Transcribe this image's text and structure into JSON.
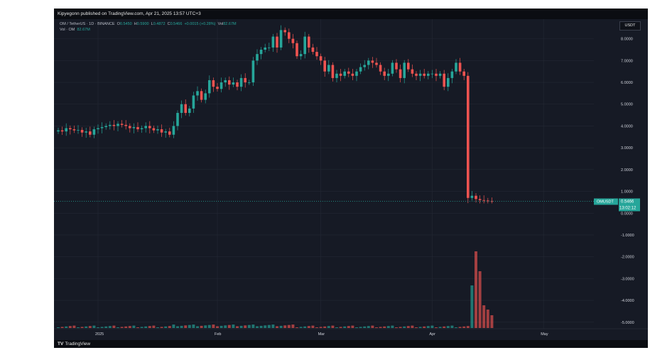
{
  "header": {
    "published": "Kipyegonn published on TradingView.com, Apr 21, 2025 13:57 UTC+3"
  },
  "legend": {
    "symbol": "OM / TetherUS · 1D · BINANCE",
    "o_label": "O",
    "o_value": "0.5450",
    "h_label": "H",
    "h_value": "0.5900",
    "l_label": "L",
    "l_value": "0.4872",
    "c_label": "C",
    "c_value": "0.5466",
    "change": "+0.0015 (+0.28%)",
    "vol_label": "Vol",
    "vol_value": "82.67M",
    "vol_line_label": "Vol · OM",
    "vol_line_value": "82.67M"
  },
  "currency_button": "USDT",
  "price_tag": {
    "symbol": "OMUSDT",
    "price": "0.5466",
    "countdown": "13:02:12"
  },
  "footer": {
    "brand": "TradingView",
    "logo": "TV"
  },
  "colors": {
    "background": "#161a25",
    "up": "#26a69a",
    "down": "#ef5350",
    "grid": "#232834"
  },
  "chart_data": {
    "type": "candlestick",
    "symbol": "OMUSDT",
    "exchange": "BINANCE",
    "interval": "1D",
    "ylim": [
      -5.3,
      8.9
    ],
    "y_ticks": [
      "8.0000",
      "7.0000",
      "6.0000",
      "5.0000",
      "4.0000",
      "3.0000",
      "2.0000",
      "1.0000",
      "0.0000",
      "-1.0000",
      "-2.0000",
      "-3.0000",
      "-4.0000",
      "-5.0000"
    ],
    "x_ticks": [
      "2025",
      "Feb",
      "Mar",
      "Apr",
      "May"
    ],
    "last_price": 0.5466,
    "closes": [
      3.8,
      3.75,
      3.9,
      3.85,
      3.8,
      3.82,
      3.7,
      3.75,
      3.6,
      3.85,
      3.9,
      3.95,
      4.0,
      4.05,
      4.0,
      4.1,
      4.05,
      4.0,
      3.9,
      3.95,
      3.85,
      3.9,
      4.0,
      3.9,
      3.8,
      3.85,
      3.7,
      3.75,
      3.6,
      4.0,
      4.6,
      5.0,
      4.6,
      4.8,
      5.4,
      5.6,
      5.2,
      5.5,
      6.1,
      5.8,
      5.7,
      6.0,
      6.1,
      5.9,
      6.0,
      5.8,
      6.2,
      6.0,
      6.0,
      7.0,
      7.3,
      7.5,
      7.6,
      7.6,
      8.1,
      7.6,
      8.4,
      8.3,
      8.0,
      7.8,
      7.2,
      7.3,
      8.1,
      7.6,
      7.4,
      7.2,
      7.0,
      6.5,
      6.8,
      6.2,
      6.4,
      6.3,
      6.5,
      6.4,
      6.3,
      6.5,
      6.7,
      6.8,
      7.0,
      6.9,
      6.8,
      6.5,
      6.3,
      6.4,
      6.9,
      6.6,
      6.2,
      6.9,
      6.6,
      6.4,
      6.3,
      6.4,
      6.3,
      6.4,
      6.4,
      6.3,
      6.4,
      5.8,
      6.2,
      6.5,
      6.9,
      6.5,
      6.3,
      0.7,
      0.8,
      0.65,
      0.6,
      0.58,
      0.55,
      0.5466
    ],
    "volume_labels_min": "0",
    "volume_spike_days": [
      104,
      105,
      106,
      107,
      108,
      109,
      110
    ]
  }
}
